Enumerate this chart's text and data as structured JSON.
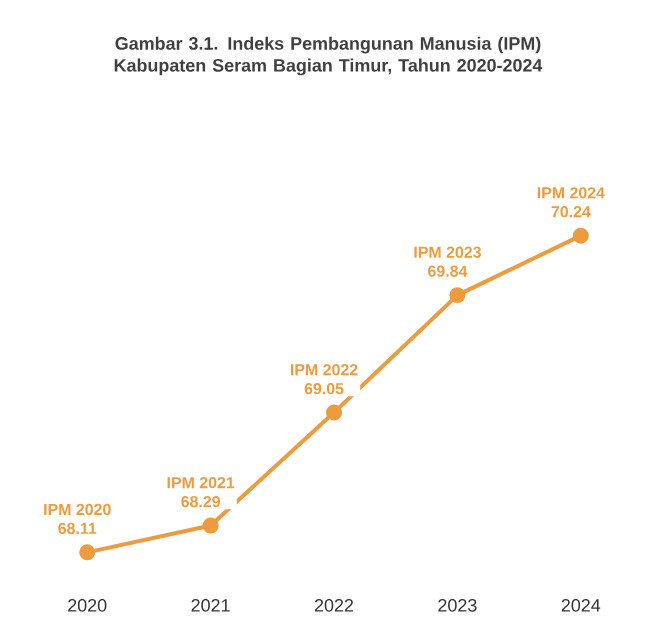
{
  "chart_data": {
    "type": "line",
    "title": "Gambar 3.1. Indeks Pembangunan Manusia (IPM) Kabupaten Seram Bagian Timur, Tahun 2020-2024",
    "categories": [
      "2020",
      "2021",
      "2022",
      "2023",
      "2024"
    ],
    "values": [
      68.11,
      68.29,
      69.05,
      69.84,
      70.24
    ],
    "data_labels": true,
    "annotations": [
      {
        "text": "IPM 2020",
        "x": "2020",
        "y": 68.11
      },
      {
        "text": "IPM 2021",
        "x": "2021",
        "y": 68.29
      },
      {
        "text": "IPM 2022",
        "x": "2022",
        "y": 69.05
      },
      {
        "text": "IPM 2023",
        "x": "2023",
        "y": 69.84
      },
      {
        "text": "IPM 2024",
        "x": "2024",
        "y": 70.24
      }
    ],
    "color": "#ee9b3f",
    "marker": "circle",
    "line_style": "solid"
  }
}
